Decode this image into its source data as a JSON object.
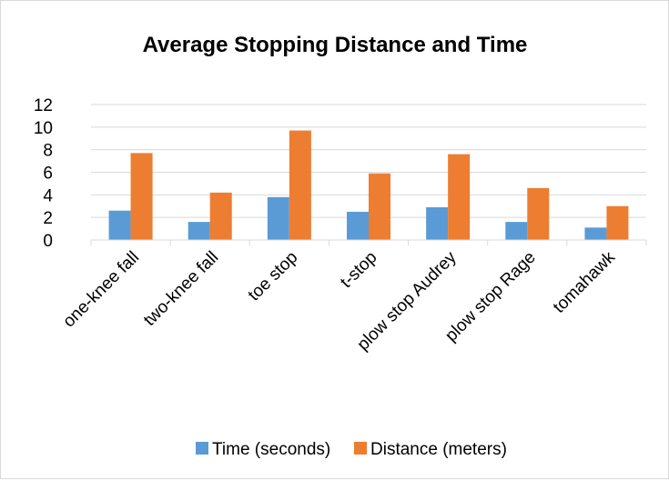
{
  "chart_data": {
    "type": "bar",
    "title": "Average Stopping Distance and Time",
    "xlabel": "",
    "ylabel": "",
    "categories": [
      "one-knee fall",
      "two-knee fall",
      "toe stop",
      "t-stop",
      "plow stop Audrey",
      "plow stop Rage",
      "tomahawk"
    ],
    "series": [
      {
        "name": "Time (seconds)",
        "color": "#5b9bd5",
        "values": [
          2.6,
          1.6,
          3.8,
          2.5,
          2.9,
          1.6,
          1.1
        ]
      },
      {
        "name": "Distance (meters)",
        "color": "#ed7d31",
        "values": [
          7.7,
          4.2,
          9.7,
          5.9,
          7.6,
          4.6,
          3.0
        ]
      }
    ],
    "ylim": [
      0,
      12
    ],
    "yticks": [
      0,
      2,
      4,
      6,
      8,
      10,
      12
    ],
    "grid": true,
    "legend_position": "bottom"
  }
}
